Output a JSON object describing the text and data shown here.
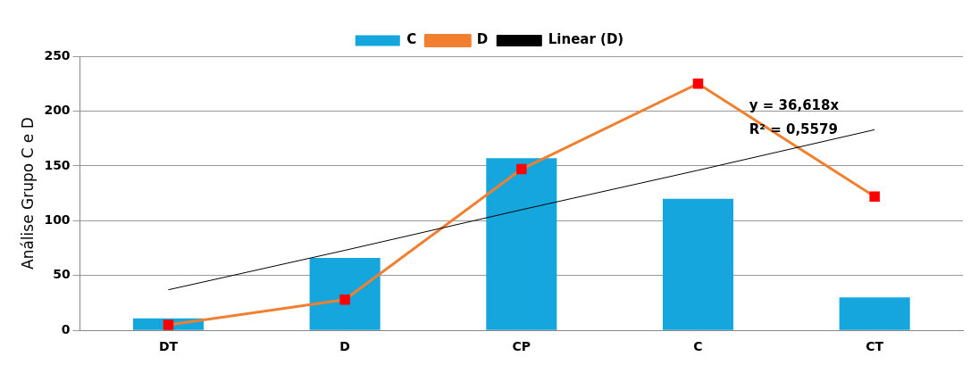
{
  "chart_data": {
    "type": "bar",
    "ylabel": "Análise Grupo C e D",
    "categories": [
      "DT",
      "D",
      "CP",
      "C",
      "CT"
    ],
    "series": [
      {
        "name": "C",
        "color": "#14a6dc",
        "values": [
          11,
          66,
          157,
          120,
          30
        ]
      },
      {
        "name": "D",
        "type": "line",
        "color": "#f0802f",
        "marker": "square",
        "values": [
          5,
          28,
          147,
          225,
          122
        ]
      },
      {
        "name": "Linear (D)",
        "type": "line",
        "color": "#000000",
        "marker": "none",
        "values": [
          37,
          73,
          110,
          146,
          183
        ]
      }
    ],
    "ylim": [
      0,
      250
    ],
    "yticks": [
      0,
      50,
      100,
      150,
      200,
      250
    ],
    "grid": "y",
    "legend": "top",
    "annotations": [
      "y = 36,618x",
      "R² = 0,5579"
    ]
  }
}
